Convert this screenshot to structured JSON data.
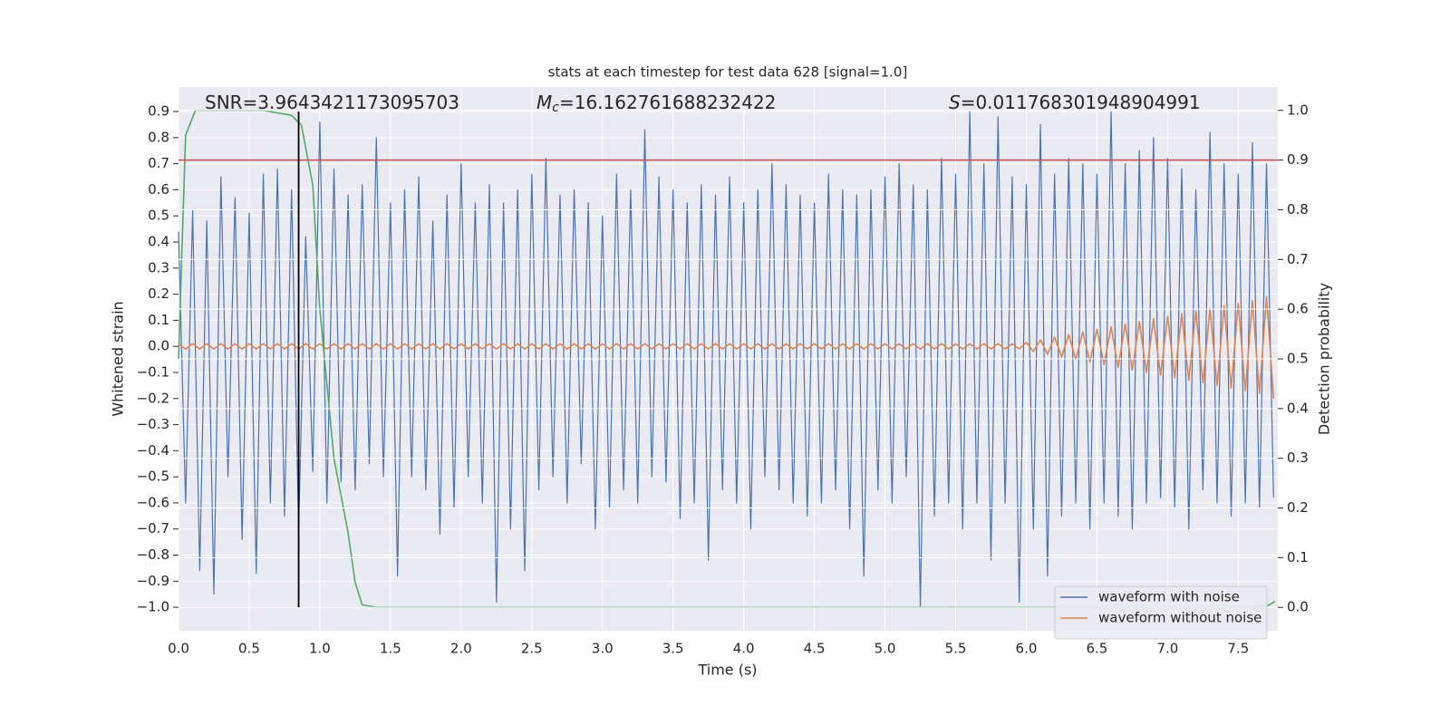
{
  "chart_data": {
    "type": "line",
    "title": "stats at each timestep for test data 628 [signal=1.0]",
    "xlabel": "Time (s)",
    "ylabel": "Whitened strain",
    "y2label": "Detection probability",
    "annotations": [
      {
        "text": "SNR=3.9643421173095703"
      },
      {
        "symbol": "M",
        "subscript": "c",
        "text": "=16.162761688232422"
      },
      {
        "symbol": "S",
        "text": "=0.011768301948904991"
      }
    ],
    "xlim": [
      0,
      7.78
    ],
    "ylim": [
      -1.09,
      0.994
    ],
    "y2lim": [
      -0.047,
      1.047
    ],
    "xticks": [
      {
        "value": 0,
        "label": "0.0"
      },
      0.5,
      {
        "value": 1,
        "label": "1.0"
      },
      1.5,
      {
        "value": 2,
        "label": "2.0"
      },
      2.5,
      {
        "value": 3,
        "label": "3.0"
      },
      3.5,
      {
        "value": 4,
        "label": "4.0"
      },
      4.5,
      {
        "value": 5,
        "label": "5.0"
      },
      5.5,
      {
        "value": 6,
        "label": "6.0"
      },
      6.5,
      {
        "value": 7,
        "label": "7.0"
      },
      7.5
    ],
    "yticks": [
      {
        "value": -1,
        "label": "−1.0"
      },
      {
        "value": -0.9,
        "label": "−0.9"
      },
      {
        "value": -0.8,
        "label": "−0.8"
      },
      {
        "value": -0.7,
        "label": "−0.7"
      },
      {
        "value": -0.6,
        "label": "−0.6"
      },
      {
        "value": -0.5,
        "label": "−0.5"
      },
      {
        "value": -0.4,
        "label": "−0.4"
      },
      {
        "value": -0.3,
        "label": "−0.3"
      },
      {
        "value": -0.2,
        "label": "−0.2"
      },
      {
        "value": -0.1,
        "label": "−0.1"
      },
      {
        "value": 0,
        "label": "0.0"
      },
      0.1,
      0.2,
      0.3,
      0.4,
      0.5,
      0.6,
      0.7,
      0.8,
      0.9
    ],
    "y2ticks": [
      {
        "value": 0,
        "label": "0.0"
      },
      0.1,
      0.2,
      0.3,
      0.4,
      0.5,
      0.6,
      0.7,
      0.8,
      0.9,
      {
        "value": 1,
        "label": "1.0"
      }
    ],
    "grid": true,
    "legend": "lower right",
    "threshold": {
      "value": 0.9,
      "axis": "y2",
      "color": "#c44e52"
    },
    "vline": {
      "x": 0.85,
      "ymin": -1.0,
      "ymax": 0.9,
      "color": "#000000"
    },
    "x": [
      0,
      0.05,
      0.1,
      0.15,
      0.2,
      0.25,
      0.3,
      0.35,
      0.4,
      0.45,
      0.5,
      0.55,
      0.6,
      0.65,
      0.7,
      0.75,
      0.8,
      0.85,
      0.9,
      0.95,
      1,
      1.05,
      1.1,
      1.15,
      1.2,
      1.25,
      1.3,
      1.35,
      1.4,
      1.45,
      1.5,
      1.55,
      1.6,
      1.65,
      1.7,
      1.75,
      1.8,
      1.85,
      1.9,
      1.95,
      2,
      2.05,
      2.1,
      2.15,
      2.2,
      2.25,
      2.3,
      2.35,
      2.4,
      2.45,
      2.5,
      2.55,
      2.6,
      2.65,
      2.7,
      2.75,
      2.8,
      2.85,
      2.9,
      2.95,
      3,
      3.05,
      3.1,
      3.15,
      3.2,
      3.25,
      3.3,
      3.35,
      3.4,
      3.45,
      3.5,
      3.55,
      3.6,
      3.65,
      3.7,
      3.75,
      3.8,
      3.85,
      3.9,
      3.95,
      4,
      4.05,
      4.1,
      4.15,
      4.2,
      4.25,
      4.3,
      4.35,
      4.4,
      4.45,
      4.5,
      4.55,
      4.6,
      4.65,
      4.7,
      4.75,
      4.8,
      4.85,
      4.9,
      4.95,
      5,
      5.05,
      5.1,
      5.15,
      5.2,
      5.25,
      5.3,
      5.35,
      5.4,
      5.45,
      5.5,
      5.55,
      5.6,
      5.65,
      5.7,
      5.75,
      5.8,
      5.85,
      5.9,
      5.95,
      6,
      6.05,
      6.1,
      6.15,
      6.2,
      6.25,
      6.3,
      6.35,
      6.4,
      6.45,
      6.5,
      6.55,
      6.6,
      6.65,
      6.7,
      6.75,
      6.8,
      6.85,
      6.9,
      6.95,
      7,
      7.05,
      7.1,
      7.15,
      7.2,
      7.25,
      7.3,
      7.35,
      7.4,
      7.45,
      7.5,
      7.55,
      7.6,
      7.65,
      7.7,
      7.75
    ],
    "series": [
      {
        "name": "waveform with noise",
        "color": "#4c72b0",
        "values": [
          0.44,
          -0.6,
          0.52,
          -0.86,
          0.48,
          -0.95,
          0.65,
          -0.5,
          0.57,
          -0.74,
          0.51,
          -0.87,
          0.66,
          -0.6,
          0.68,
          -0.65,
          0.6,
          -0.7,
          0.42,
          -0.48,
          0.86,
          -0.6,
          0.68,
          -0.52,
          0.58,
          -0.55,
          0.62,
          -0.45,
          0.8,
          -0.5,
          0.55,
          -0.88,
          0.6,
          -0.5,
          0.65,
          -0.55,
          0.48,
          -0.72,
          0.58,
          -0.62,
          0.7,
          -0.5,
          0.55,
          -0.6,
          0.62,
          -0.98,
          0.55,
          -0.7,
          0.6,
          -0.86,
          0.66,
          -0.55,
          0.72,
          -0.5,
          0.58,
          -0.6,
          0.6,
          -0.45,
          0.55,
          -0.7,
          0.5,
          -0.62,
          0.66,
          -0.55,
          0.6,
          -0.6,
          0.83,
          -0.5,
          0.65,
          -0.52,
          0.6,
          -0.66,
          0.55,
          -0.6,
          0.62,
          -0.82,
          0.58,
          -0.55,
          0.65,
          -0.6,
          0.55,
          -0.7,
          0.6,
          -0.5,
          0.7,
          -0.55,
          0.62,
          -0.6,
          0.58,
          -0.65,
          0.55,
          -0.6,
          0.66,
          -0.55,
          0.6,
          -0.7,
          0.58,
          -0.88,
          0.6,
          -0.55,
          0.65,
          -0.6,
          0.7,
          -0.5,
          0.62,
          -1.0,
          0.6,
          -0.65,
          0.72,
          -0.6,
          0.66,
          -0.7,
          0.9,
          -0.6,
          0.7,
          -0.82,
          0.88,
          -0.6,
          0.65,
          -0.98,
          0.62,
          -0.7,
          0.85,
          -0.88,
          0.66,
          -0.65,
          0.72,
          -0.6,
          0.7,
          -0.7,
          0.66,
          -0.6,
          0.9,
          -0.65,
          0.7,
          -0.7,
          0.75,
          -0.6,
          0.8,
          -0.58,
          0.72,
          -0.62,
          0.68,
          -0.7,
          0.6,
          -0.55,
          0.82,
          -0.6,
          0.7,
          -0.65,
          0.66,
          -0.6,
          0.78,
          -0.62,
          0.7,
          -0.58
        ]
      },
      {
        "name": "waveform without noise",
        "color": "#dd8452",
        "values": [
          0.01,
          -0.01,
          0.01,
          -0.01,
          0.01,
          -0.01,
          0.01,
          -0.01,
          0.01,
          -0.01,
          0.01,
          -0.01,
          0.01,
          -0.01,
          0.01,
          -0.01,
          0.01,
          -0.01,
          0.01,
          -0.01,
          0.01,
          -0.01,
          0.01,
          -0.01,
          0.01,
          -0.01,
          0.01,
          -0.01,
          0.01,
          -0.01,
          0.01,
          -0.01,
          0.01,
          -0.01,
          0.01,
          -0.01,
          0.01,
          -0.01,
          0.01,
          -0.01,
          0.01,
          -0.01,
          0.01,
          -0.01,
          0.01,
          -0.01,
          0.01,
          -0.01,
          0.01,
          -0.01,
          0.01,
          -0.01,
          0.01,
          -0.01,
          0.01,
          -0.01,
          0.01,
          -0.01,
          0.01,
          -0.01,
          0.01,
          -0.01,
          0.01,
          -0.01,
          0.01,
          -0.01,
          0.01,
          -0.01,
          0.01,
          -0.01,
          0.01,
          -0.01,
          0.01,
          -0.01,
          0.01,
          -0.01,
          0.01,
          -0.01,
          0.01,
          -0.01,
          0.01,
          -0.01,
          0.01,
          -0.01,
          0.01,
          -0.01,
          0.01,
          -0.01,
          0.01,
          -0.01,
          0.01,
          -0.01,
          0.01,
          -0.01,
          0.01,
          -0.01,
          0.01,
          -0.01,
          0.01,
          -0.01,
          0.01,
          -0.01,
          0.01,
          -0.01,
          0.01,
          -0.01,
          0.01,
          -0.01,
          0.01,
          -0.01,
          0.01,
          -0.01,
          0.01,
          -0.01,
          0.01,
          -0.01,
          0.01,
          -0.01,
          0.01,
          -0.01,
          0.015,
          -0.02,
          0.025,
          -0.03,
          0.035,
          -0.04,
          0.045,
          -0.05,
          0.055,
          -0.06,
          0.065,
          -0.07,
          0.075,
          -0.08,
          0.085,
          -0.09,
          0.095,
          -0.1,
          0.105,
          -0.11,
          0.115,
          -0.12,
          0.125,
          -0.13,
          0.135,
          -0.14,
          0.145,
          -0.15,
          0.155,
          -0.16,
          0.165,
          -0.17,
          0.175,
          -0.18,
          0.19,
          -0.2
        ]
      },
      {
        "color": "#55a868",
        "axis": "y2",
        "x": [
          0,
          0.05,
          0.12,
          0.3,
          0.6,
          0.8,
          0.87,
          0.95,
          1.0,
          1.05,
          1.1,
          1.2,
          1.25,
          1.3,
          1.4,
          2,
          7.6,
          7.7,
          7.76
        ],
        "values": [
          0.5,
          0.95,
          1.0,
          1.0,
          1.0,
          0.99,
          0.97,
          0.85,
          0.6,
          0.45,
          0.3,
          0.15,
          0.05,
          0.005,
          0,
          0,
          0,
          0.002,
          0.012
        ]
      }
    ]
  }
}
